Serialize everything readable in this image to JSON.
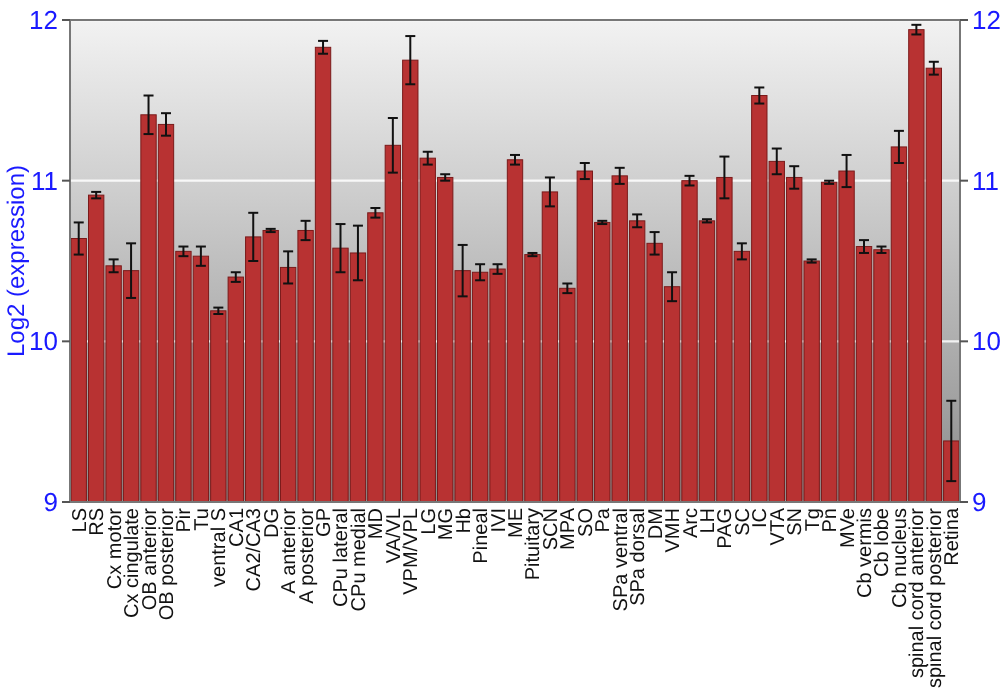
{
  "chart_data": {
    "type": "bar",
    "ylabel": "Log2 (expression)",
    "categories": [
      "LS",
      "RS",
      "Cx motor",
      "Cx cingulate",
      "OB anterior",
      "OB posterior",
      "Pir",
      "Tu",
      "ventral S",
      "CA1",
      "CA2/CA3",
      "DG",
      "A anterior",
      "A posterior",
      "GP",
      "CPu lateral",
      "CPu medial",
      "MD",
      "VA/VL",
      "VPM/VPL",
      "LG",
      "MG",
      "Hb",
      "Pineal",
      "IVI",
      "ME",
      "Pituitary",
      "SCN",
      "MPA",
      "SO",
      "Pa",
      "SPa ventral",
      "SPa dorsal",
      "DM",
      "VMH",
      "Arc",
      "LH",
      "PAG",
      "SC",
      "IC",
      "VTA",
      "SN",
      "Tg",
      "Pn",
      "MVe",
      "Cb vermis",
      "Cb lobe",
      "Cb nucleus",
      "spinal cord anterior",
      "spinal cord posterior",
      "Retina"
    ],
    "values": [
      10.64,
      10.91,
      10.47,
      10.44,
      11.41,
      11.35,
      10.56,
      10.53,
      10.19,
      10.4,
      10.65,
      10.69,
      10.46,
      10.69,
      11.83,
      10.58,
      10.55,
      10.8,
      11.22,
      11.75,
      11.14,
      11.02,
      10.44,
      10.43,
      10.45,
      11.13,
      10.54,
      10.93,
      10.33,
      11.06,
      10.74,
      11.03,
      10.75,
      10.61,
      10.34,
      11.0,
      10.75,
      11.02,
      10.56,
      11.53,
      11.12,
      11.02,
      10.5,
      10.99,
      11.06,
      10.59,
      10.57,
      11.21,
      11.94,
      11.7,
      9.38
    ],
    "errors": [
      0.1,
      0.02,
      0.04,
      0.17,
      0.12,
      0.07,
      0.03,
      0.06,
      0.02,
      0.03,
      0.15,
      0.01,
      0.1,
      0.06,
      0.04,
      0.15,
      0.17,
      0.03,
      0.17,
      0.15,
      0.04,
      0.02,
      0.16,
      0.05,
      0.03,
      0.03,
      0.01,
      0.09,
      0.03,
      0.05,
      0.01,
      0.05,
      0.04,
      0.07,
      0.09,
      0.03,
      0.01,
      0.13,
      0.05,
      0.05,
      0.08,
      0.07,
      0.01,
      0.01,
      0.1,
      0.04,
      0.02,
      0.1,
      0.03,
      0.04,
      0.25
    ],
    "color": "#b83232",
    "ylim": [
      9,
      12
    ],
    "yticks": [
      9,
      10,
      11,
      12
    ],
    "y2lim": [
      9,
      12
    ],
    "y2ticks": [
      9,
      10,
      11,
      12
    ],
    "grid": "y"
  }
}
